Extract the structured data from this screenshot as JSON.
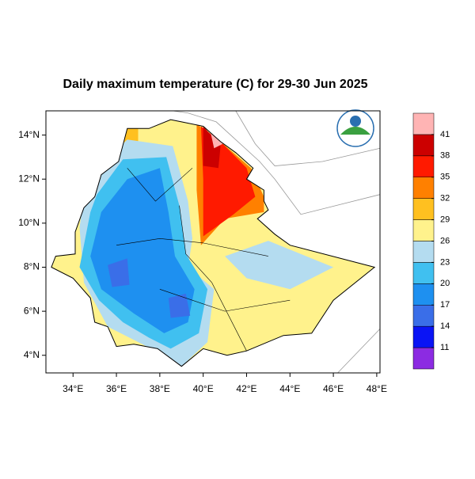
{
  "title": "Daily maximum temperature (C) for 29-30 Jun 2025",
  "xlim": [
    32.75,
    48.15
  ],
  "ylim": [
    3.2,
    15.1
  ],
  "xticks": [
    {
      "value": 34,
      "label": "34°E"
    },
    {
      "value": 36,
      "label": "36°E"
    },
    {
      "value": 38,
      "label": "38°E"
    },
    {
      "value": 40,
      "label": "40°E"
    },
    {
      "value": 42,
      "label": "42°E"
    },
    {
      "value": 44,
      "label": "44°E"
    },
    {
      "value": 46,
      "label": "46°E"
    },
    {
      "value": 48,
      "label": "48°E"
    }
  ],
  "yticks": [
    {
      "value": 4,
      "label": "4°N"
    },
    {
      "value": 6,
      "label": "6°N"
    },
    {
      "value": 8,
      "label": "8°N"
    },
    {
      "value": 10,
      "label": "10°N"
    },
    {
      "value": 12,
      "label": "12°N"
    },
    {
      "value": 14,
      "label": "14°N"
    }
  ],
  "colorbar": {
    "levels": [
      11,
      14,
      17,
      20,
      23,
      26,
      29,
      32,
      35,
      38,
      41
    ],
    "colors": [
      "#8c2be2",
      "#0a14f5",
      "#3a6ee8",
      "#1e90f0",
      "#40c0f0",
      "#b4dcf0",
      "#fff28c",
      "#ffc020",
      "#ff8000",
      "#ff1a00",
      "#cc0000",
      "#ffb4b4"
    ]
  }
}
